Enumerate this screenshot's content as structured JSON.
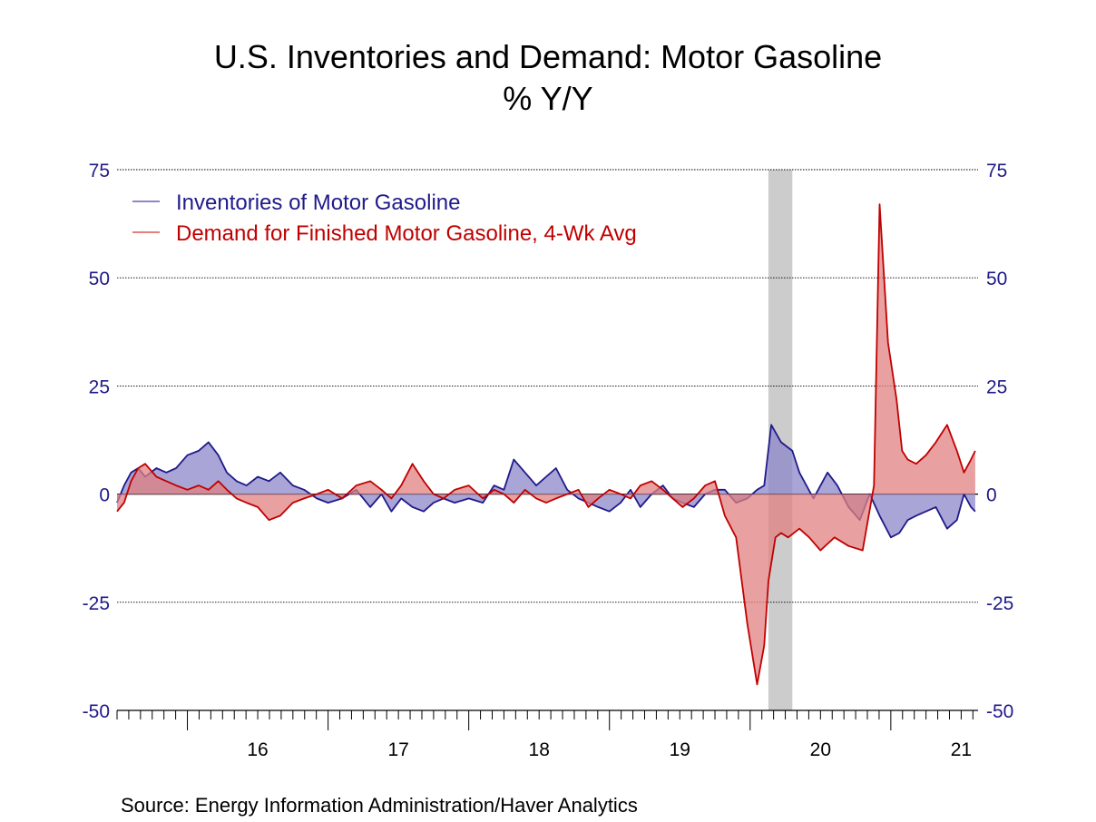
{
  "chart_data": {
    "type": "area",
    "title": "U.S. Inventories and Demand: Motor Gasoline",
    "subtitle": "% Y/Y",
    "source": "Source:  Energy Information Administration/Haver Analytics",
    "ylim": [
      -50,
      75
    ],
    "yticks": [
      75,
      50,
      25,
      0,
      -25,
      -50
    ],
    "ytick_labels": [
      "75",
      "50",
      "25",
      "0",
      "-25",
      "-50"
    ],
    "xlim": [
      2015.5,
      2021.62
    ],
    "xticks": [
      2016,
      2017,
      2018,
      2019,
      2020,
      2021
    ],
    "xtick_labels": [
      "16",
      "17",
      "18",
      "19",
      "20",
      "21"
    ],
    "recession": {
      "start": 2020.13,
      "end": 2020.3
    },
    "colors": {
      "inventories": "#1f1a8a",
      "inventories_fill": "#8c87c8",
      "demand": "#c00000",
      "demand_fill": "#e08080",
      "recession": "#cccccc",
      "axis_text": "#1f1a8a"
    },
    "legend": {
      "position": "top-left"
    },
    "series": [
      {
        "name": "Inventories of Motor Gasoline",
        "key": "inventories",
        "x": [
          2015.5,
          2015.55,
          2015.6,
          2015.65,
          2015.7,
          2015.78,
          2015.85,
          2015.92,
          2016.0,
          2016.08,
          2016.15,
          2016.22,
          2016.28,
          2016.35,
          2016.42,
          2016.5,
          2016.58,
          2016.66,
          2016.75,
          2016.83,
          2016.92,
          2017.0,
          2017.1,
          2017.2,
          2017.3,
          2017.38,
          2017.45,
          2017.52,
          2017.6,
          2017.68,
          2017.75,
          2017.82,
          2017.9,
          2018.0,
          2018.1,
          2018.18,
          2018.25,
          2018.32,
          2018.4,
          2018.48,
          2018.55,
          2018.62,
          2018.7,
          2018.78,
          2018.85,
          2018.92,
          2019.0,
          2019.08,
          2019.15,
          2019.22,
          2019.3,
          2019.38,
          2019.45,
          2019.52,
          2019.6,
          2019.68,
          2019.75,
          2019.82,
          2019.9,
          2019.98,
          2020.05,
          2020.1,
          2020.15,
          2020.22,
          2020.3,
          2020.35,
          2020.4,
          2020.45,
          2020.55,
          2020.62,
          2020.7,
          2020.78,
          2020.85,
          2020.92,
          2021.0,
          2021.06,
          2021.12,
          2021.18,
          2021.25,
          2021.32,
          2021.4,
          2021.47,
          2021.52,
          2021.57,
          2021.6
        ],
        "values": [
          -2,
          2,
          5,
          6,
          4,
          6,
          5,
          6,
          9,
          10,
          12,
          9,
          5,
          3,
          2,
          4,
          3,
          5,
          2,
          1,
          -1,
          -2,
          -1,
          1,
          -3,
          0,
          -4,
          -1,
          -3,
          -4,
          -2,
          -1,
          -2,
          -1,
          -2,
          2,
          1,
          8,
          5,
          2,
          4,
          6,
          1,
          -1,
          -2,
          -3,
          -4,
          -2,
          1,
          -3,
          0,
          2,
          -1,
          -2,
          -3,
          0,
          1,
          1,
          -2,
          -1,
          1,
          2,
          16,
          12,
          10,
          5,
          2,
          -1,
          5,
          2,
          -3,
          -6,
          0,
          -5,
          -10,
          -9,
          -6,
          -5,
          -4,
          -3,
          -8,
          -6,
          0,
          -3,
          -4
        ]
      },
      {
        "name": "Demand for Finished Motor Gasoline, 4-Wk Avg",
        "key": "demand",
        "x": [
          2015.5,
          2015.55,
          2015.6,
          2015.65,
          2015.7,
          2015.78,
          2015.85,
          2015.92,
          2016.0,
          2016.08,
          2016.15,
          2016.22,
          2016.28,
          2016.35,
          2016.42,
          2016.5,
          2016.58,
          2016.66,
          2016.75,
          2016.83,
          2016.92,
          2017.0,
          2017.1,
          2017.2,
          2017.3,
          2017.38,
          2017.45,
          2017.52,
          2017.6,
          2017.68,
          2017.75,
          2017.82,
          2017.9,
          2018.0,
          2018.1,
          2018.18,
          2018.25,
          2018.32,
          2018.4,
          2018.48,
          2018.55,
          2018.62,
          2018.7,
          2018.78,
          2018.85,
          2018.92,
          2019.0,
          2019.08,
          2019.15,
          2019.22,
          2019.3,
          2019.38,
          2019.45,
          2019.52,
          2019.6,
          2019.68,
          2019.75,
          2019.82,
          2019.9,
          2019.98,
          2020.05,
          2020.1,
          2020.13,
          2020.18,
          2020.22,
          2020.27,
          2020.35,
          2020.42,
          2020.5,
          2020.6,
          2020.7,
          2020.8,
          2020.88,
          2020.92,
          2020.98,
          2021.04,
          2021.08,
          2021.12,
          2021.18,
          2021.25,
          2021.32,
          2021.4,
          2021.47,
          2021.52,
          2021.57,
          2021.6
        ],
        "values": [
          -4,
          -2,
          3,
          6,
          7,
          4,
          3,
          2,
          1,
          2,
          1,
          3,
          1,
          -1,
          -2,
          -3,
          -6,
          -5,
          -2,
          -1,
          0,
          1,
          -1,
          2,
          3,
          1,
          -1,
          2,
          7,
          3,
          0,
          -1,
          1,
          2,
          -1,
          1,
          0,
          -2,
          1,
          -1,
          -2,
          -1,
          0,
          1,
          -3,
          -1,
          1,
          0,
          -1,
          2,
          3,
          1,
          -1,
          -3,
          -1,
          2,
          3,
          -5,
          -10,
          -30,
          -44,
          -35,
          -20,
          -10,
          -9,
          -10,
          -8,
          -10,
          -13,
          -10,
          -12,
          -13,
          2,
          67,
          35,
          22,
          10,
          8,
          7,
          9,
          12,
          16,
          10,
          5,
          8,
          10
        ]
      }
    ]
  }
}
